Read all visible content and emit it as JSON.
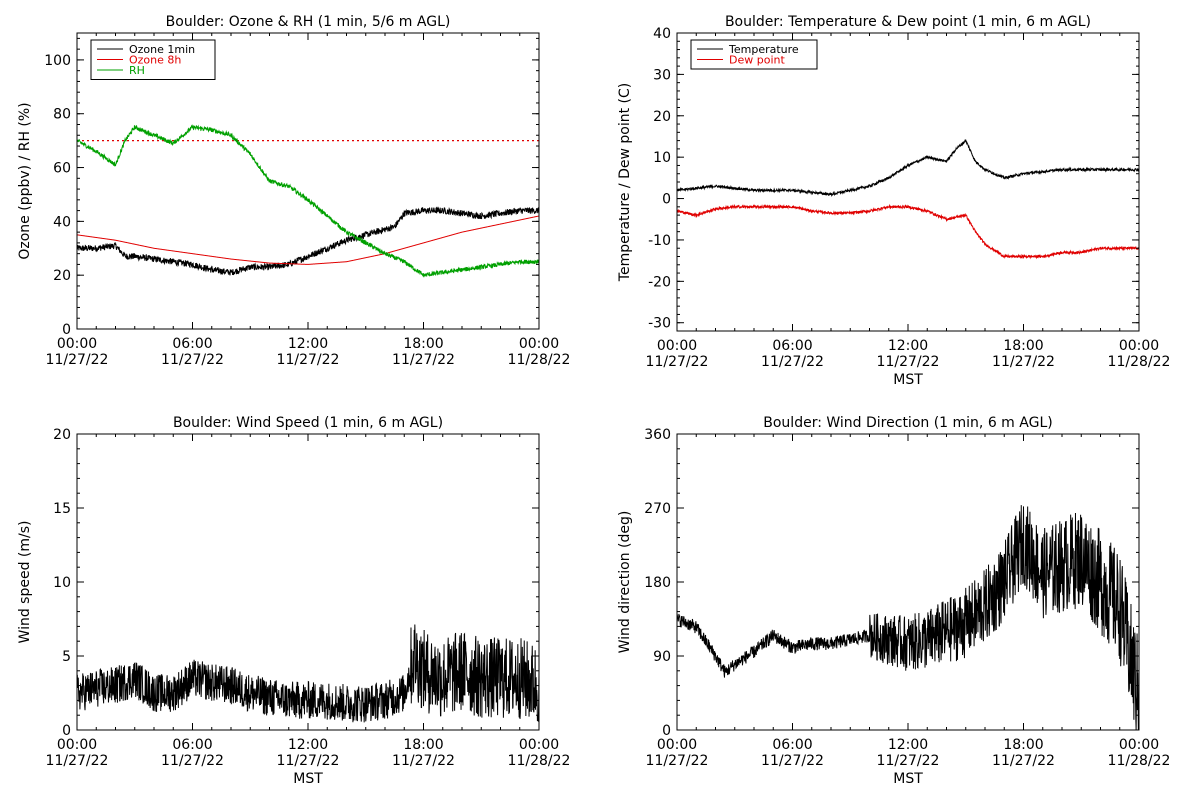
{
  "colors": {
    "black": "#000000",
    "red": "#e00000",
    "green": "#00a000"
  },
  "chart_data": [
    {
      "id": "ozone",
      "type": "line",
      "title": "Boulder: Ozone & RH (1 min, 5/6 m AGL)",
      "xlabel": "",
      "ylabel": "Ozone (ppbv) / RH (%)",
      "xlim": [
        0,
        24
      ],
      "ylim": [
        0,
        110
      ],
      "x_ticks": [
        0,
        6,
        12,
        18,
        24
      ],
      "x_tick_labels": [
        "00:00\n11/27/22",
        "06:00\n11/27/22",
        "12:00\n11/27/22",
        "18:00\n11/27/22",
        "00:00\n11/28/22"
      ],
      "y_ticks": [
        0,
        20,
        40,
        60,
        80,
        100
      ],
      "y_tick_labels": [
        "0",
        "20",
        "40",
        "60",
        "80",
        "100"
      ],
      "legend": {
        "position": "top-left",
        "entries": [
          {
            "label": "Ozone 1min",
            "color": "#000000"
          },
          {
            "label": "Ozone 8h",
            "color": "#e00000"
          },
          {
            "label": "RH",
            "color": "#00a000"
          }
        ]
      },
      "reference_line": {
        "y": 70,
        "color": "#e00000",
        "style": "dotted"
      },
      "series": [
        {
          "name": "Ozone 1min",
          "color": "#000000",
          "noise": 1.2,
          "x": [
            0,
            1,
            2,
            2.5,
            3,
            4,
            5,
            6,
            7,
            8,
            9,
            10,
            11,
            12,
            13,
            14,
            15,
            16,
            16.5,
            17,
            18,
            19,
            20,
            21,
            22,
            23,
            24
          ],
          "y": [
            30,
            30,
            31,
            27,
            27,
            26,
            25,
            24,
            22,
            21,
            23,
            23,
            24,
            27,
            30,
            33,
            35,
            37,
            38,
            43,
            44,
            44,
            43,
            42,
            43,
            44,
            44
          ]
        },
        {
          "name": "Ozone 8h",
          "color": "#e00000",
          "noise": 0,
          "x": [
            0,
            2,
            4,
            6,
            8,
            10,
            12,
            14,
            16,
            18,
            20,
            22,
            24
          ],
          "y": [
            35,
            33,
            30,
            28,
            26,
            24.5,
            24,
            25,
            28,
            32,
            36,
            39,
            42
          ]
        },
        {
          "name": "RH",
          "color": "#00a000",
          "noise": 0.8,
          "x": [
            0,
            1,
            2,
            2.5,
            3,
            4,
            5,
            6,
            7,
            8,
            9,
            10,
            11,
            12,
            13,
            14,
            15,
            16,
            17,
            18,
            19,
            20,
            21,
            22,
            23,
            24
          ],
          "y": [
            70,
            66,
            61,
            70,
            75,
            72,
            69,
            75,
            74,
            72,
            65,
            55,
            53,
            48,
            42,
            36,
            32,
            28,
            25,
            20,
            21,
            22,
            23,
            24,
            25,
            25
          ]
        }
      ]
    },
    {
      "id": "temp",
      "type": "line",
      "title": "Boulder: Temperature & Dew point (1 min, 6 m AGL)",
      "xlabel": "MST",
      "ylabel": "Temperature / Dew point (C)",
      "xlim": [
        0,
        24
      ],
      "ylim": [
        -32,
        40
      ],
      "x_ticks": [
        0,
        6,
        12,
        18,
        24
      ],
      "x_tick_labels": [
        "00:00\n11/27/22",
        "06:00\n11/27/22",
        "12:00\n11/27/22",
        "18:00\n11/27/22",
        "00:00\n11/28/22"
      ],
      "y_ticks": [
        -30,
        -20,
        -10,
        0,
        10,
        20,
        30,
        40
      ],
      "y_tick_labels": [
        "-30",
        "-20",
        "-10",
        "0",
        "10",
        "20",
        "30",
        "40"
      ],
      "legend": {
        "position": "top-left",
        "entries": [
          {
            "label": "Temperature",
            "color": "#000000"
          },
          {
            "label": "Dew point",
            "color": "#e00000"
          }
        ]
      },
      "series": [
        {
          "name": "Temperature",
          "color": "#000000",
          "noise": 0.3,
          "x": [
            0,
            1,
            2,
            3,
            4,
            5,
            6,
            7,
            8,
            9,
            10,
            11,
            12,
            13,
            14,
            14.5,
            15,
            15.5,
            16,
            17,
            18,
            19,
            20,
            21,
            22,
            23,
            24
          ],
          "y": [
            2,
            2.5,
            3,
            2.5,
            2,
            2,
            2,
            1.5,
            1,
            2,
            3,
            5,
            8,
            10,
            9,
            12,
            14,
            9,
            7,
            5,
            6,
            6.5,
            7,
            7,
            7,
            7,
            7
          ]
        },
        {
          "name": "Dew point",
          "color": "#e00000",
          "noise": 0.3,
          "x": [
            0,
            1,
            2,
            3,
            4,
            5,
            6,
            7,
            8,
            9,
            10,
            11,
            12,
            13,
            14,
            15,
            15.5,
            16,
            17,
            18,
            19,
            20,
            21,
            22,
            23,
            24
          ],
          "y": [
            -3,
            -4,
            -2.5,
            -2,
            -2,
            -2,
            -2,
            -3,
            -3.5,
            -3.5,
            -3,
            -2,
            -2,
            -3,
            -5,
            -4,
            -8,
            -11,
            -14,
            -14,
            -14,
            -13,
            -13,
            -12,
            -12,
            -12
          ]
        }
      ]
    },
    {
      "id": "wspd",
      "type": "line",
      "title": "Boulder: Wind Speed (1 min, 6 m AGL)",
      "xlabel": "MST",
      "ylabel": "Wind speed (m/s)",
      "xlim": [
        0,
        24
      ],
      "ylim": [
        0,
        20
      ],
      "x_ticks": [
        0,
        6,
        12,
        18,
        24
      ],
      "x_tick_labels": [
        "00:00\n11/27/22",
        "06:00\n11/27/22",
        "12:00\n11/27/22",
        "18:00\n11/27/22",
        "00:00\n11/28/22"
      ],
      "y_ticks": [
        0,
        5,
        10,
        15,
        20
      ],
      "y_tick_labels": [
        "0",
        "5",
        "10",
        "15",
        "20"
      ],
      "series": [
        {
          "name": "Wind speed",
          "color": "#000000",
          "noise": 1.3,
          "x": [
            0,
            1,
            2,
            3,
            4,
            5,
            6,
            7,
            8,
            9,
            10,
            11,
            12,
            13,
            14,
            15,
            16,
            17,
            17.5,
            18,
            19,
            20,
            21,
            22,
            23,
            24
          ],
          "y": [
            2.5,
            2.8,
            3,
            3.5,
            2.5,
            2.5,
            3.5,
            3.2,
            3,
            2.5,
            2.2,
            2,
            2,
            2,
            1.8,
            1.8,
            2,
            2.5,
            5,
            4,
            3.5,
            4,
            3.5,
            3.5,
            3.5,
            3
          ]
        }
      ]
    },
    {
      "id": "wdir",
      "type": "line",
      "title": "Boulder: Wind Direction (1 min, 6 m AGL)",
      "xlabel": "MST",
      "ylabel": "Wind direction (deg)",
      "xlim": [
        0,
        24
      ],
      "ylim": [
        0,
        360
      ],
      "x_ticks": [
        0,
        6,
        12,
        18,
        24
      ],
      "x_tick_labels": [
        "00:00\n11/27/22",
        "06:00\n11/27/22",
        "12:00\n11/27/22",
        "18:00\n11/27/22",
        "00:00\n11/28/22"
      ],
      "y_ticks": [
        0,
        90,
        180,
        270,
        360
      ],
      "y_tick_labels": [
        "0",
        "90",
        "180",
        "270",
        "360"
      ],
      "series": [
        {
          "name": "Wind direction",
          "color": "#000000",
          "noise": 8,
          "x": [
            0,
            1,
            2,
            2.5,
            3,
            4,
            5,
            6,
            7,
            8,
            9,
            10,
            11,
            12,
            13,
            14,
            15,
            16,
            17,
            18,
            19,
            20,
            21,
            22,
            23,
            24
          ],
          "y": [
            135,
            125,
            90,
            70,
            80,
            95,
            115,
            100,
            105,
            105,
            110,
            115,
            110,
            105,
            110,
            120,
            130,
            150,
            180,
            230,
            190,
            200,
            210,
            180,
            150,
            40
          ]
        }
      ]
    }
  ]
}
